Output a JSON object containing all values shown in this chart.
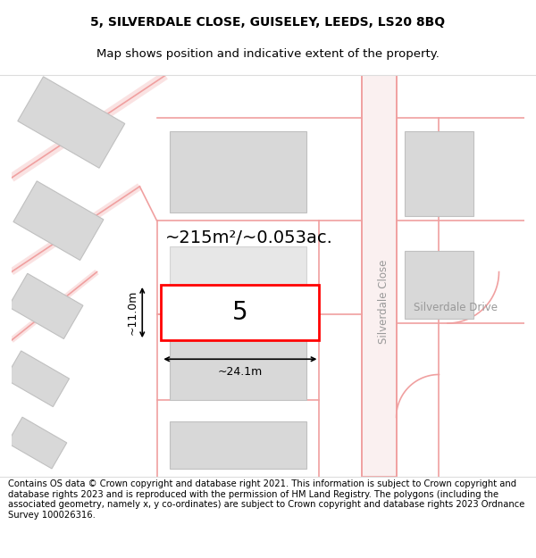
{
  "title_line1": "5, SILVERDALE CLOSE, GUISELEY, LEEDS, LS20 8BQ",
  "title_line2": "Map shows position and indicative extent of the property.",
  "footer_text": "Contains OS data © Crown copyright and database right 2021. This information is subject to Crown copyright and database rights 2023 and is reproduced with the permission of HM Land Registry. The polygons (including the associated geometry, namely x, y co-ordinates) are subject to Crown copyright and database rights 2023 Ordnance Survey 100026316.",
  "background_color": "#ffffff",
  "map_bg_color": "#ffffff",
  "road_color": "#f0a0a0",
  "building_fill": "#d8d8d8",
  "building_edge": "#c0c0c0",
  "highlight_fill": "#ffffff",
  "highlight_edge": "#ff0000",
  "street_label1": "Silverdale Close",
  "street_label2": "Silverdale Drive",
  "property_label": "5",
  "area_label": "~215m²/~0.053ac.",
  "width_label": "~24.1m",
  "height_label": "~11.0m",
  "title_fontsize": 10,
  "footer_fontsize": 7.2,
  "street_label_fontsize": 8.5,
  "property_label_fontsize": 20,
  "area_label_fontsize": 14,
  "dim_label_fontsize": 9
}
